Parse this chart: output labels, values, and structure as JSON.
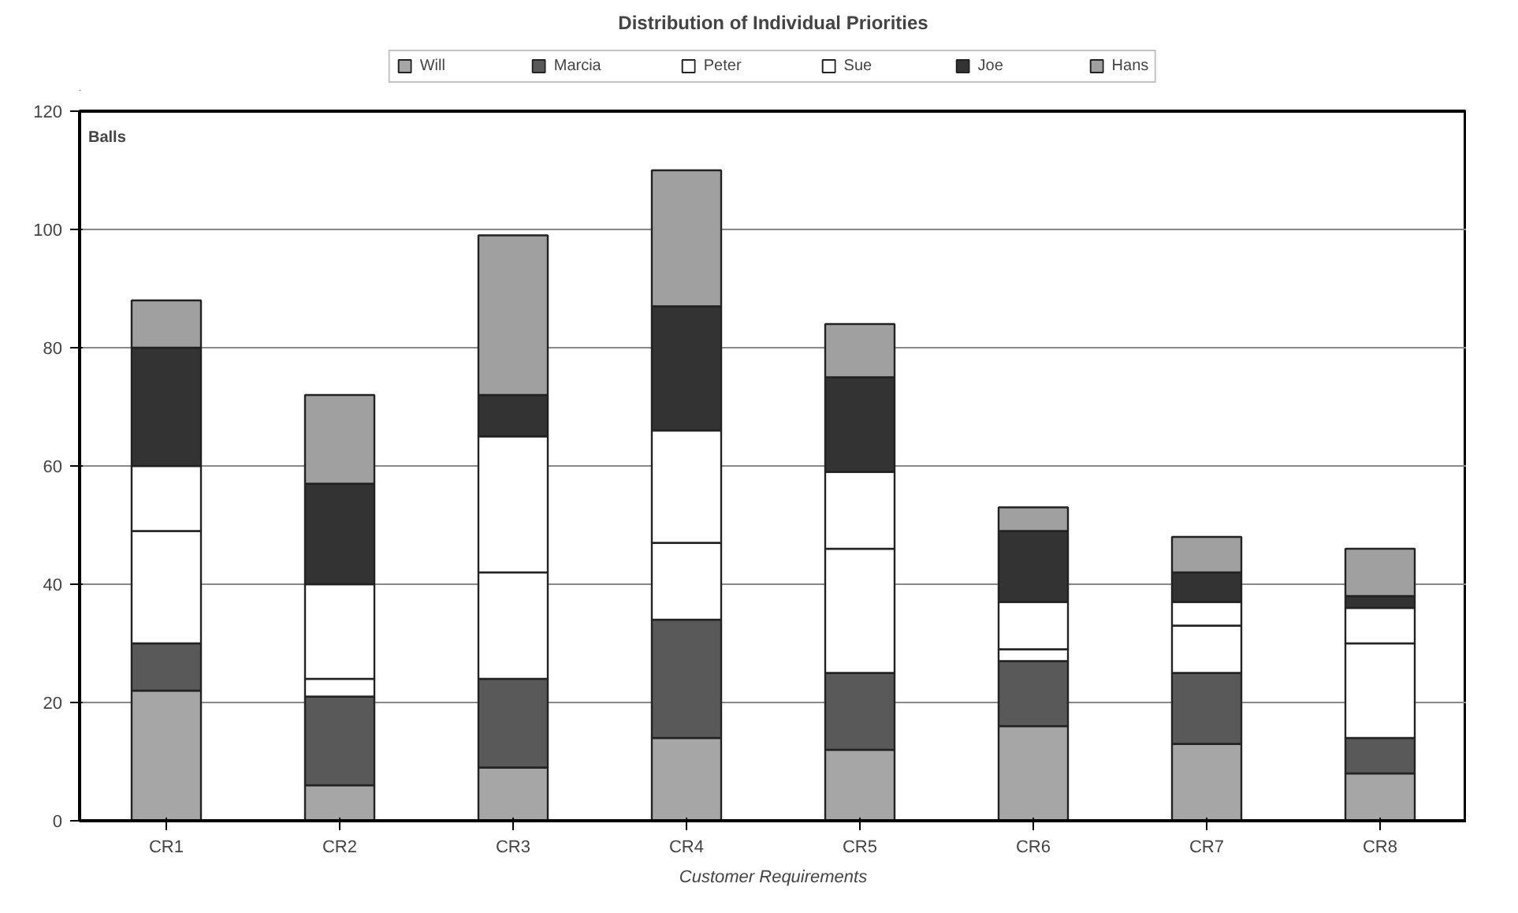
{
  "chart_data": {
    "type": "bar",
    "title": "Distribution of Individual Priorities",
    "xlabel": "Customer Requirements",
    "annotations": [
      "Balls"
    ],
    "categories": [
      "CR1",
      "CR2",
      "CR3",
      "CR4",
      "CR5",
      "CR6",
      "CR7",
      "CR8"
    ],
    "stacked": true,
    "ylim": [
      0,
      120
    ],
    "yticks": [
      0,
      20,
      40,
      60,
      80,
      100,
      120
    ],
    "grid": "y",
    "legend": "top",
    "series": [
      {
        "name": "Will",
        "color": "#a6a6a6",
        "values": [
          22,
          6,
          9,
          14,
          12,
          16,
          13,
          8
        ]
      },
      {
        "name": "Marcia",
        "color": "#595959",
        "values": [
          8,
          15,
          15,
          20,
          13,
          11,
          12,
          6
        ]
      },
      {
        "name": "Peter",
        "color": "#ffffff",
        "values": [
          19,
          3,
          18,
          13,
          21,
          2,
          8,
          16
        ]
      },
      {
        "name": "Sue",
        "color": "#ffffff",
        "values": [
          11,
          16,
          23,
          19,
          13,
          8,
          4,
          6
        ]
      },
      {
        "name": "Joe",
        "color": "#333333",
        "values": [
          20,
          17,
          7,
          21,
          16,
          12,
          5,
          2
        ]
      },
      {
        "name": "Hans",
        "color": "#a0a0a0",
        "values": [
          8,
          15,
          27,
          23,
          9,
          4,
          6,
          8
        ]
      }
    ]
  }
}
